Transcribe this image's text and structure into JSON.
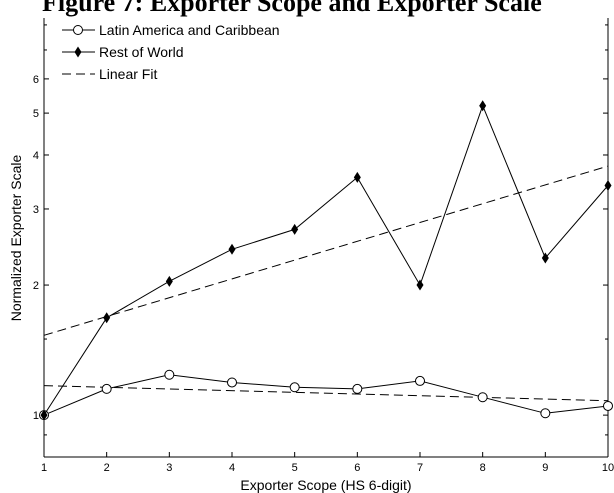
{
  "title": "Figure 7: Exporter Scope and Exporter Scale",
  "chart_data": {
    "type": "line",
    "title": "Figure 7: Exporter Scope and Exporter Scale",
    "xlabel": "Exporter Scope (HS 6-digit)",
    "ylabel": "Normalized Exporter Scale",
    "x": [
      1,
      2,
      3,
      4,
      5,
      6,
      7,
      8,
      9,
      10
    ],
    "xlim": [
      1,
      10
    ],
    "ylim": [
      0.8,
      8.3
    ],
    "yscale": "log",
    "xticks": [
      "1",
      "2",
      "3",
      "4",
      "5",
      "6",
      "7",
      "8",
      "9",
      "10"
    ],
    "yticks": [
      "1",
      "2",
      "3",
      "4",
      "5",
      "6"
    ],
    "ytick_values": [
      1,
      2,
      3,
      4,
      5,
      6
    ],
    "grid": false,
    "legend_position": "top-left",
    "series": [
      {
        "name": "Latin America and Caribbean",
        "marker": "open-circle",
        "line": "solid",
        "values": [
          1.0,
          1.15,
          1.24,
          1.19,
          1.16,
          1.15,
          1.2,
          1.1,
          1.01,
          1.05
        ]
      },
      {
        "name": "Rest of World",
        "marker": "filled-diamond",
        "line": "solid",
        "values": [
          1.0,
          1.68,
          2.04,
          2.42,
          2.69,
          3.55,
          2.0,
          5.2,
          2.31,
          3.4
        ]
      },
      {
        "name": "Linear Fit",
        "marker": "none",
        "line": "dashed",
        "segments": [
          {
            "x": [
              1,
              10
            ],
            "values": [
              1.17,
              1.08
            ]
          },
          {
            "x": [
              1,
              10
            ],
            "values": [
              1.53,
              3.77
            ]
          }
        ]
      }
    ]
  }
}
